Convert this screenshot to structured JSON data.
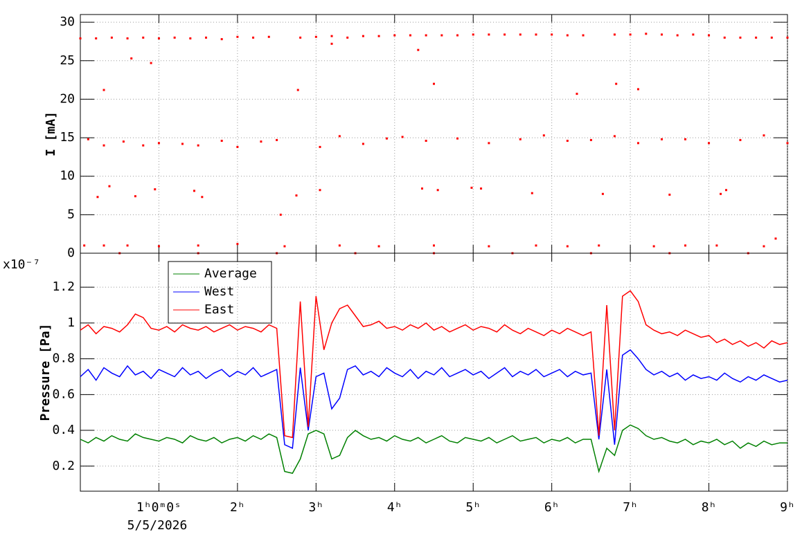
{
  "chart_data": [
    {
      "type": "scatter",
      "ylabel": "I [mA]",
      "color": "#ff0000",
      "xlim": [
        0,
        9
      ],
      "xticks": [
        1,
        2,
        3,
        4,
        5,
        6,
        7,
        8,
        9
      ],
      "ylim": [
        0,
        31
      ],
      "yticks": [
        0,
        5,
        10,
        15,
        20,
        25,
        30
      ],
      "grid": true,
      "x": [
        0,
        0.2,
        0.4,
        0.6,
        0.8,
        1.0,
        1.2,
        1.4,
        1.6,
        1.8,
        2.0,
        2.2,
        2.4,
        2.8,
        3.0,
        3.2,
        3.4,
        3.6,
        3.8,
        4.0,
        4.2,
        4.4,
        4.6,
        4.8,
        5.0,
        5.2,
        5.4,
        5.6,
        5.8,
        6.0,
        6.2,
        6.4,
        6.8,
        7.0,
        7.2,
        7.4,
        7.6,
        7.8,
        8.0,
        8.2,
        8.4,
        8.6,
        8.8,
        9.0,
        0.3,
        0.65,
        0.9,
        2.77,
        4.5,
        6.32,
        6.82,
        7.1,
        3.2,
        4.3,
        0.1,
        0.3,
        0.55,
        0.8,
        1.0,
        1.3,
        1.5,
        1.8,
        2.0,
        2.3,
        2.5,
        3.05,
        3.3,
        3.6,
        3.9,
        4.1,
        4.4,
        4.8,
        5.2,
        5.6,
        5.9,
        6.2,
        6.5,
        6.8,
        7.1,
        7.4,
        7.7,
        8.0,
        8.4,
        8.7,
        9.0,
        0.22,
        0.37,
        0.7,
        0.95,
        1.45,
        1.55,
        2.55,
        2.75,
        3.05,
        4.35,
        4.55,
        4.98,
        5.1,
        5.75,
        6.65,
        7.5,
        8.15,
        8.22,
        0.05,
        0.3,
        0.6,
        1.0,
        1.5,
        2.0,
        2.6,
        3.3,
        3.8,
        4.5,
        5.2,
        5.8,
        6.2,
        6.6,
        7.3,
        7.7,
        8.1,
        8.7,
        8.85,
        0.5,
        1.5,
        2.5,
        3.5,
        4.5,
        5.5,
        6.5,
        7.5,
        8.5
      ],
      "values": [
        27.9,
        27.9,
        28.0,
        27.9,
        28.0,
        27.9,
        28.0,
        27.9,
        28.0,
        27.8,
        28.1,
        28.0,
        28.1,
        28.0,
        28.1,
        28.2,
        28.0,
        28.2,
        28.2,
        28.3,
        28.3,
        28.3,
        28.3,
        28.3,
        28.4,
        28.4,
        28.4,
        28.4,
        28.4,
        28.4,
        28.3,
        28.3,
        28.4,
        28.4,
        28.5,
        28.4,
        28.3,
        28.4,
        28.3,
        28.0,
        28.0,
        28.0,
        28.0,
        28.0,
        21.2,
        25.3,
        24.7,
        21.2,
        22.0,
        20.7,
        22.0,
        21.3,
        27.2,
        26.4,
        14.8,
        14.0,
        14.5,
        14.0,
        14.3,
        14.2,
        14.0,
        14.6,
        13.8,
        14.5,
        14.7,
        13.8,
        15.2,
        14.2,
        14.9,
        15.1,
        14.6,
        14.9,
        14.3,
        14.8,
        15.3,
        14.6,
        14.7,
        15.2,
        14.3,
        14.8,
        14.8,
        14.3,
        14.7,
        15.3,
        14.3,
        7.3,
        8.7,
        7.4,
        8.3,
        8.1,
        7.3,
        5.0,
        7.5,
        8.2,
        8.4,
        8.2,
        8.5,
        8.4,
        7.8,
        7.7,
        7.6,
        7.7,
        8.2,
        1.0,
        1.0,
        1.0,
        0.9,
        1.0,
        1.2,
        0.9,
        1.0,
        0.9,
        1.0,
        0.9,
        1.0,
        0.9,
        1.0,
        0.9,
        1.0,
        1.0,
        0.9,
        1.9,
        0,
        0,
        0,
        0,
        0,
        0,
        0,
        0,
        0
      ]
    },
    {
      "type": "line",
      "ylabel": "Pressure [Pa]",
      "scale_label": "x10⁻⁷",
      "date": "5/5/2026",
      "xlim": [
        0,
        9
      ],
      "xticks": [
        {
          "value": 1,
          "label": "1ʰ0ᵐ0ˢ"
        },
        {
          "value": 2,
          "label": "2ʰ"
        },
        {
          "value": 3,
          "label": "3ʰ"
        },
        {
          "value": 4,
          "label": "4ʰ"
        },
        {
          "value": 5,
          "label": "5ʰ"
        },
        {
          "value": 6,
          "label": "6ʰ"
        },
        {
          "value": 7,
          "label": "7ʰ"
        },
        {
          "value": 8,
          "label": "8ʰ"
        },
        {
          "value": 9,
          "label": "9ʰ"
        }
      ],
      "ylim": [
        0.06,
        1.39
      ],
      "yticks": [
        0.2,
        0.4,
        0.6,
        0.8,
        1,
        1.2
      ],
      "grid": true,
      "legend": "top-left",
      "x": [
        0,
        0.1,
        0.2,
        0.3,
        0.4,
        0.5,
        0.6,
        0.7,
        0.8,
        0.9,
        1.0,
        1.1,
        1.2,
        1.3,
        1.4,
        1.5,
        1.6,
        1.7,
        1.8,
        1.9,
        2.0,
        2.1,
        2.2,
        2.3,
        2.4,
        2.5,
        2.6,
        2.7,
        2.8,
        2.9,
        3.0,
        3.1,
        3.2,
        3.3,
        3.4,
        3.5,
        3.6,
        3.7,
        3.8,
        3.9,
        4.0,
        4.1,
        4.2,
        4.3,
        4.4,
        4.5,
        4.6,
        4.7,
        4.8,
        4.9,
        5.0,
        5.1,
        5.2,
        5.3,
        5.4,
        5.5,
        5.6,
        5.7,
        5.8,
        5.9,
        6.0,
        6.1,
        6.2,
        6.3,
        6.4,
        6.5,
        6.6,
        6.7,
        6.8,
        6.9,
        7.0,
        7.1,
        7.2,
        7.3,
        7.4,
        7.5,
        7.6,
        7.7,
        7.8,
        7.9,
        8.0,
        8.1,
        8.2,
        8.3,
        8.4,
        8.5,
        8.6,
        8.7,
        8.8,
        8.9,
        9.0
      ],
      "series": [
        {
          "name": "Average",
          "color": "#008000",
          "values": [
            0.35,
            0.33,
            0.36,
            0.34,
            0.37,
            0.35,
            0.34,
            0.38,
            0.36,
            0.35,
            0.34,
            0.36,
            0.35,
            0.33,
            0.37,
            0.35,
            0.34,
            0.36,
            0.33,
            0.35,
            0.36,
            0.34,
            0.37,
            0.35,
            0.38,
            0.36,
            0.17,
            0.16,
            0.24,
            0.38,
            0.4,
            0.38,
            0.24,
            0.26,
            0.36,
            0.4,
            0.37,
            0.35,
            0.36,
            0.34,
            0.37,
            0.35,
            0.34,
            0.36,
            0.33,
            0.35,
            0.37,
            0.34,
            0.33,
            0.36,
            0.35,
            0.34,
            0.36,
            0.33,
            0.35,
            0.37,
            0.34,
            0.35,
            0.36,
            0.33,
            0.35,
            0.34,
            0.36,
            0.33,
            0.35,
            0.35,
            0.17,
            0.3,
            0.26,
            0.4,
            0.43,
            0.41,
            0.37,
            0.35,
            0.36,
            0.34,
            0.33,
            0.35,
            0.32,
            0.34,
            0.33,
            0.35,
            0.32,
            0.34,
            0.3,
            0.33,
            0.31,
            0.34,
            0.32,
            0.33,
            0.33
          ]
        },
        {
          "name": "West",
          "color": "#0000ff",
          "values": [
            0.7,
            0.74,
            0.68,
            0.75,
            0.72,
            0.7,
            0.76,
            0.71,
            0.73,
            0.69,
            0.74,
            0.72,
            0.7,
            0.75,
            0.71,
            0.73,
            0.69,
            0.72,
            0.74,
            0.7,
            0.73,
            0.71,
            0.75,
            0.7,
            0.72,
            0.74,
            0.32,
            0.3,
            0.75,
            0.4,
            0.7,
            0.72,
            0.52,
            0.58,
            0.74,
            0.76,
            0.71,
            0.73,
            0.7,
            0.75,
            0.72,
            0.7,
            0.74,
            0.69,
            0.73,
            0.71,
            0.75,
            0.7,
            0.72,
            0.74,
            0.71,
            0.73,
            0.69,
            0.72,
            0.75,
            0.7,
            0.73,
            0.71,
            0.74,
            0.7,
            0.72,
            0.74,
            0.7,
            0.73,
            0.71,
            0.72,
            0.35,
            0.74,
            0.32,
            0.82,
            0.85,
            0.8,
            0.74,
            0.71,
            0.73,
            0.7,
            0.72,
            0.68,
            0.71,
            0.69,
            0.7,
            0.68,
            0.72,
            0.69,
            0.67,
            0.7,
            0.68,
            0.71,
            0.69,
            0.67,
            0.68
          ]
        },
        {
          "name": "East",
          "color": "#ff0000",
          "values": [
            0.96,
            0.99,
            0.94,
            0.98,
            0.97,
            0.95,
            0.99,
            1.05,
            1.03,
            0.97,
            0.96,
            0.98,
            0.95,
            0.99,
            0.97,
            0.96,
            0.98,
            0.95,
            0.97,
            0.99,
            0.96,
            0.98,
            0.97,
            0.95,
            0.99,
            0.97,
            0.37,
            0.36,
            1.12,
            0.42,
            1.15,
            0.85,
            1.0,
            1.08,
            1.1,
            1.04,
            0.98,
            0.99,
            1.01,
            0.97,
            0.98,
            0.96,
            0.99,
            0.97,
            1.0,
            0.96,
            0.98,
            0.95,
            0.97,
            0.99,
            0.96,
            0.98,
            0.97,
            0.95,
            0.99,
            0.96,
            0.94,
            0.97,
            0.95,
            0.93,
            0.96,
            0.94,
            0.97,
            0.95,
            0.93,
            0.95,
            0.37,
            1.1,
            0.4,
            1.15,
            1.18,
            1.12,
            0.99,
            0.96,
            0.94,
            0.95,
            0.93,
            0.96,
            0.94,
            0.92,
            0.93,
            0.89,
            0.91,
            0.88,
            0.9,
            0.87,
            0.89,
            0.86,
            0.9,
            0.88,
            0.89
          ]
        }
      ]
    }
  ]
}
